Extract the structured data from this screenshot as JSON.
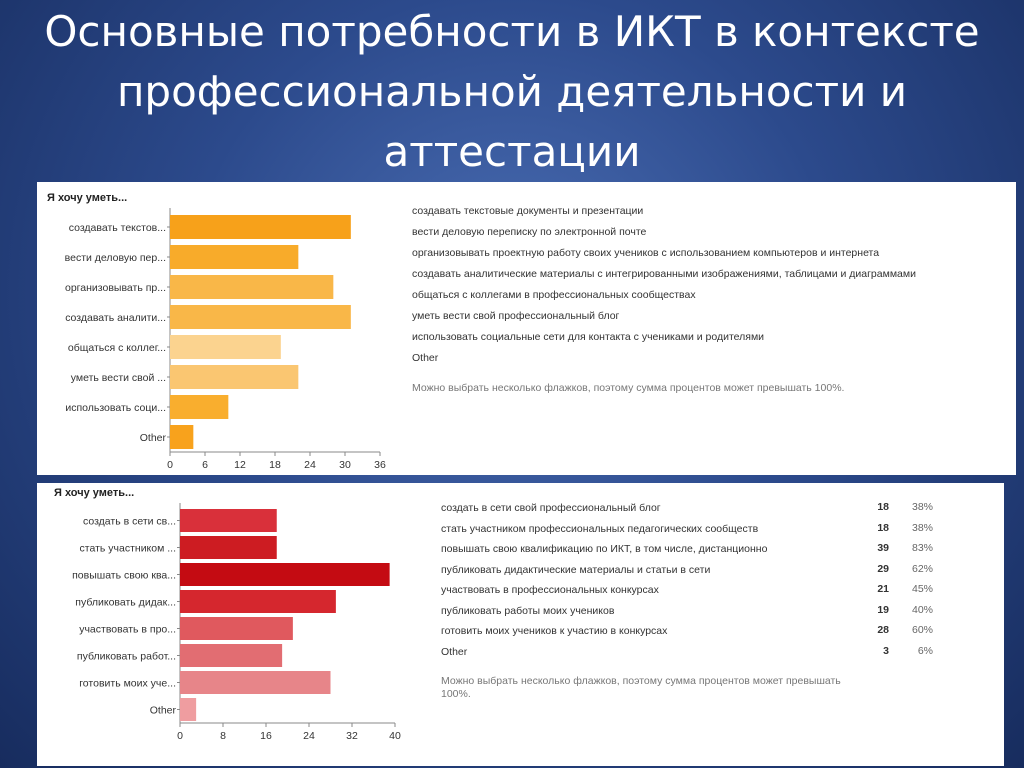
{
  "slide": {
    "title_lines": [
      "Основные потребности в ИКТ в контексте",
      "профессиональной деятельности и",
      "аттестации"
    ]
  },
  "chart_data": [
    {
      "type": "bar",
      "orientation": "horizontal",
      "title": "Я хочу уметь...",
      "categories": [
        "создавать текстов...",
        "вести деловую пер...",
        "организовывать пр...",
        "создавать аналити...",
        "общаться с коллег...",
        "уметь вести свой ...",
        "использовать соци...",
        "Other"
      ],
      "values": [
        31,
        22,
        28,
        31,
        19,
        22,
        10,
        4
      ],
      "colors": [
        "#f7a11a",
        "#f8ab2a",
        "#f9b748",
        "#f9b748",
        "#fbd38f",
        "#fac671",
        "#f9ae2e",
        "#f8a21c"
      ],
      "xlim": [
        0,
        36
      ],
      "xticks": [
        0,
        6,
        12,
        18,
        24,
        30,
        36
      ],
      "grid": false,
      "legend": [
        {
          "label": "создавать текстовые документы и презентации"
        },
        {
          "label": "вести деловую переписку по электронной почте"
        },
        {
          "label": "организовывать проектную работу своих учеников с использованием компьютеров и интернета"
        },
        {
          "label": "создавать аналитические материалы с интегрированными изображениями, таблицами и диаграммами"
        },
        {
          "label": "общаться с коллегами в профессиональных сообществах"
        },
        {
          "label": "уметь вести свой профессиональный блог"
        },
        {
          "label": "использовать социальные сети для контакта с учениками и родителями"
        },
        {
          "label": "Other"
        }
      ],
      "note": "Можно выбрать несколько флажков, поэтому сумма процентов может превышать 100%."
    },
    {
      "type": "bar",
      "orientation": "horizontal",
      "title": "Я хочу уметь...",
      "categories": [
        "создать в сети св...",
        "стать участником ...",
        "повышать свою ква...",
        "публиковать дидак...",
        "участвовать в про...",
        "публиковать работ...",
        "готовить моих уче...",
        "Other"
      ],
      "values": [
        18,
        18,
        39,
        29,
        21,
        19,
        28,
        3
      ],
      "colors": [
        "#d9303a",
        "#cd1c22",
        "#c40b12",
        "#d5272e",
        "#e0595e",
        "#e26d72",
        "#e78589",
        "#ef9da0"
      ],
      "xlim": [
        0,
        40
      ],
      "xticks": [
        0,
        8,
        16,
        24,
        32,
        40
      ],
      "grid": false,
      "legend": [
        {
          "label": "создать в сети свой профессиональный блог",
          "count": "18",
          "percent": "38%"
        },
        {
          "label": "стать участником профессиональных педагогических сообществ",
          "count": "18",
          "percent": "38%"
        },
        {
          "label": "повышать свою квалификацию по ИКТ, в том числе, дистанционно",
          "count": "39",
          "percent": "83%"
        },
        {
          "label": "публиковать дидактические материалы и статьи в сети",
          "count": "29",
          "percent": "62%"
        },
        {
          "label": "участвовать в профессиональных конкурсах",
          "count": "21",
          "percent": "45%"
        },
        {
          "label": "публиковать работы моих учеников",
          "count": "19",
          "percent": "40%"
        },
        {
          "label": "готовить моих учеников к участию в конкурсах",
          "count": "28",
          "percent": "60%"
        },
        {
          "label": "Other",
          "count": "3",
          "percent": "6%"
        }
      ],
      "note_lines": [
        "Можно выбрать несколько флажков, поэтому сумма процентов может превышать",
        "100%."
      ]
    }
  ]
}
